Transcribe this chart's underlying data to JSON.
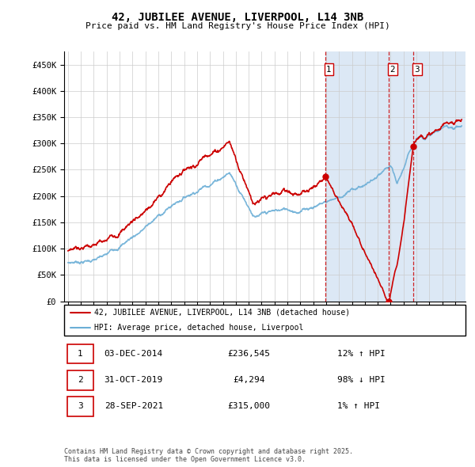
{
  "title": "42, JUBILEE AVENUE, LIVERPOOL, L14 3NB",
  "subtitle": "Price paid vs. HM Land Registry's House Price Index (HPI)",
  "ylabel_ticks": [
    "£0",
    "£50K",
    "£100K",
    "£150K",
    "£200K",
    "£250K",
    "£300K",
    "£350K",
    "£400K",
    "£450K"
  ],
  "ytick_values": [
    0,
    50000,
    100000,
    150000,
    200000,
    250000,
    300000,
    350000,
    400000,
    450000
  ],
  "ylim": [
    0,
    475000
  ],
  "xlim_start": 1994.7,
  "xlim_end": 2025.8,
  "hpi_color": "#6baed6",
  "price_color": "#cc0000",
  "shade_color": "#dce8f5",
  "vline_color": "#cc0000",
  "transactions": [
    {
      "label": "1",
      "date": "03-DEC-2014",
      "price": "£236,545",
      "hpi_text": "12% ↑ HPI",
      "year": 2014.92,
      "value": 236545
    },
    {
      "label": "2",
      "date": "31-OCT-2019",
      "price": "£4,294",
      "hpi_text": "98% ↓ HPI",
      "year": 2019.83,
      "value": 4294
    },
    {
      "label": "3",
      "date": "28-SEP-2021",
      "price": "£315,000",
      "hpi_text": "1% ↑ HPI",
      "year": 2021.75,
      "value": 315000
    }
  ],
  "legend_line1": "42, JUBILEE AVENUE, LIVERPOOL, L14 3NB (detached house)",
  "legend_line2": "HPI: Average price, detached house, Liverpool",
  "footer": "Contains HM Land Registry data © Crown copyright and database right 2025.\nThis data is licensed under the Open Government Licence v3.0.",
  "background_color": "#ffffff",
  "grid_color": "#cccccc",
  "shade_from_year": 2014.92
}
